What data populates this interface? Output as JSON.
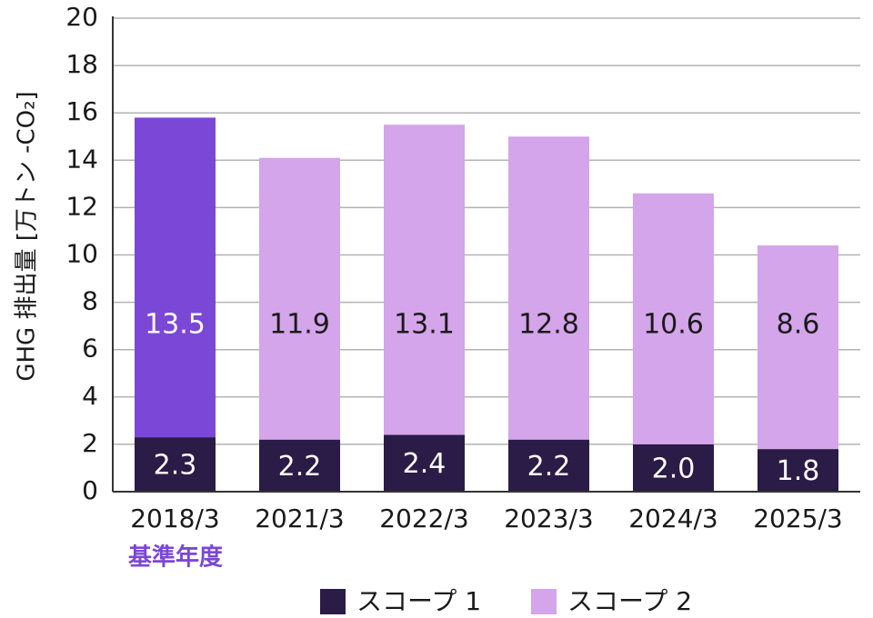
{
  "chart_data": {
    "type": "bar",
    "stacked": true,
    "categories": [
      "2018/3",
      "2021/3",
      "2022/3",
      "2023/3",
      "2024/3",
      "2025/3"
    ],
    "series": [
      {
        "name": "スコープ 1",
        "values": [
          2.3,
          2.2,
          2.4,
          2.2,
          2.0,
          1.8
        ],
        "labels": [
          "2.3",
          "2.2",
          "2.4",
          "2.2",
          "2.0",
          "1.8"
        ]
      },
      {
        "name": "スコープ 2",
        "values": [
          13.5,
          11.9,
          13.1,
          12.8,
          10.6,
          8.6
        ],
        "labels": [
          "13.5",
          "11.9",
          "13.1",
          "12.8",
          "10.6",
          "8.6"
        ]
      }
    ],
    "ylabel": "GHG 排出量 [万トン -CO₂]",
    "ylim": [
      0,
      20
    ],
    "yticks": [
      "0",
      "2",
      "4",
      "6",
      "8",
      "10",
      "12",
      "14",
      "16",
      "18",
      "20"
    ],
    "grid": true,
    "legend_position": "bottom",
    "annotation": "基準年度",
    "colors": {
      "scope1": "#2b1b47",
      "scope2": "#d4a5ea",
      "baseline_scope2": "#7b47d6",
      "annotation": "#7b47d6",
      "gridline": "#b3b3b3",
      "axis": "#333333"
    }
  }
}
